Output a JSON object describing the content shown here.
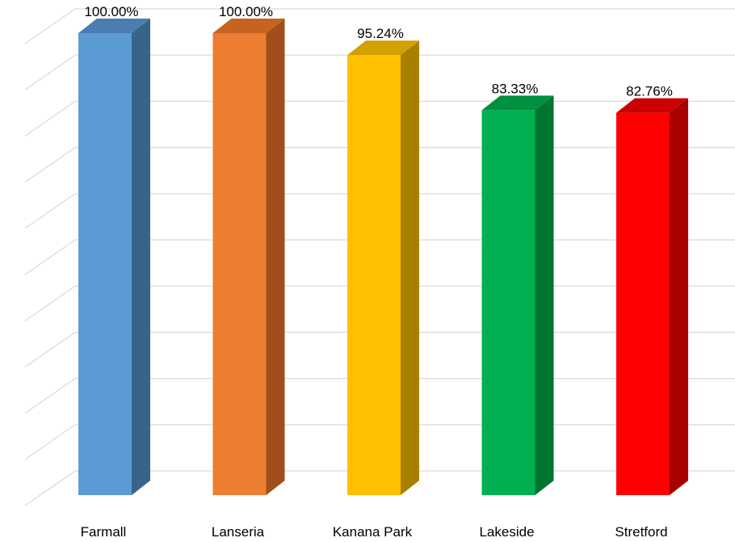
{
  "chart_data": {
    "type": "bar",
    "style": "3d-column",
    "categories": [
      "Farmall",
      "Lanseria",
      "Kanana Park",
      "Lakeside",
      "Stretford"
    ],
    "values": [
      100.0,
      100.0,
      95.24,
      83.33,
      82.76
    ],
    "data_labels": [
      "100.00%",
      "100.00%",
      "95.24%",
      "83.33%",
      "82.76%"
    ],
    "value_unit": "%",
    "ylim": [
      0,
      105
    ],
    "grid": true,
    "legend": "none",
    "colors": [
      {
        "front": "#5b9bd5",
        "side": "#3a6389",
        "top": "#4a7eb0"
      },
      {
        "front": "#ed7d31",
        "side": "#a04f1c",
        "top": "#c66320"
      },
      {
        "front": "#ffc000",
        "side": "#a88000",
        "top": "#d2a000"
      },
      {
        "front": "#00b050",
        "side": "#007530",
        "top": "#009040"
      },
      {
        "front": "#ff0000",
        "side": "#a80000",
        "top": "#cc0000"
      }
    ],
    "gridline_color": "#d9d9d9"
  }
}
